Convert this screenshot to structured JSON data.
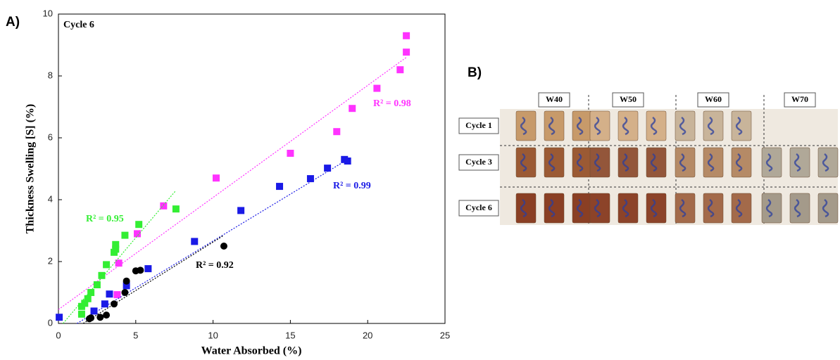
{
  "panels": {
    "a": "A)",
    "b": "B)"
  },
  "chart_data": {
    "type": "scatter",
    "annotation": "Cycle 6",
    "x_label": "Water Absorbed (%)",
    "y_label": "Thickness Swelling [S] (%)",
    "xlim": [
      0,
      25
    ],
    "ylim": [
      0,
      10
    ],
    "xticks": [
      0,
      5,
      10,
      15,
      20,
      25
    ],
    "yticks": [
      0,
      2,
      4,
      6,
      8,
      10
    ],
    "series": [
      {
        "color": "#ff33ff",
        "marker": "square",
        "r2_label": "R² = 0.98",
        "x": [
          22.5,
          22.5,
          22.1,
          20.6,
          19.0,
          18.0,
          15.0,
          10.2,
          6.8,
          5.1,
          3.9,
          3.8
        ],
        "values": [
          9.3,
          8.77,
          8.2,
          7.6,
          6.95,
          6.2,
          5.5,
          4.7,
          3.8,
          2.9,
          1.95,
          0.93
        ],
        "trend": {
          "x": [
            0,
            22.5
          ],
          "values": [
            0.45,
            8.6
          ]
        }
      },
      {
        "color": "#33ee33",
        "marker": "square",
        "r2_label": "R² = 0.95",
        "x": [
          7.6,
          5.2,
          4.3,
          3.7,
          3.7,
          3.6,
          3.1,
          2.8,
          2.5,
          2.1,
          1.9,
          1.7,
          1.5,
          1.5
        ],
        "values": [
          3.7,
          3.2,
          2.85,
          2.55,
          2.4,
          2.3,
          1.9,
          1.55,
          1.25,
          1.0,
          0.8,
          0.65,
          0.55,
          0.3
        ],
        "trend": {
          "x": [
            0.3,
            7.6
          ],
          "values": [
            0,
            4.3
          ]
        }
      },
      {
        "color": "#1a1ae6",
        "marker": "square",
        "r2_label": "R² = 0.99",
        "x": [
          18.5,
          18.7,
          17.4,
          16.3,
          14.3,
          11.8,
          8.8,
          5.8,
          4.4,
          3.3,
          3.0,
          2.3,
          0.05
        ],
        "values": [
          5.3,
          5.25,
          5.02,
          4.68,
          4.43,
          3.65,
          2.65,
          1.77,
          1.22,
          0.95,
          0.63,
          0.4,
          0.2
        ],
        "trend": {
          "x": [
            1.2,
            18.7
          ],
          "values": [
            0,
            5.3
          ]
        }
      },
      {
        "color": "#000000",
        "marker": "circle",
        "r2_label": "R² = 0.92",
        "x": [
          10.7,
          5.3,
          5.0,
          4.4,
          4.3,
          3.6,
          3.1,
          2.7,
          2.1,
          2.0
        ],
        "values": [
          2.5,
          1.72,
          1.7,
          1.37,
          1.0,
          0.63,
          0.27,
          0.2,
          0.18,
          0.15
        ],
        "trend": {
          "x": [
            1.6,
            10.7
          ],
          "values": [
            0,
            2.85
          ]
        }
      }
    ]
  },
  "photo_grid": {
    "columns": [
      "W40",
      "W50",
      "W60",
      "W70"
    ],
    "rows": [
      "Cycle 1",
      "Cycle 3",
      "Cycle 6"
    ]
  }
}
